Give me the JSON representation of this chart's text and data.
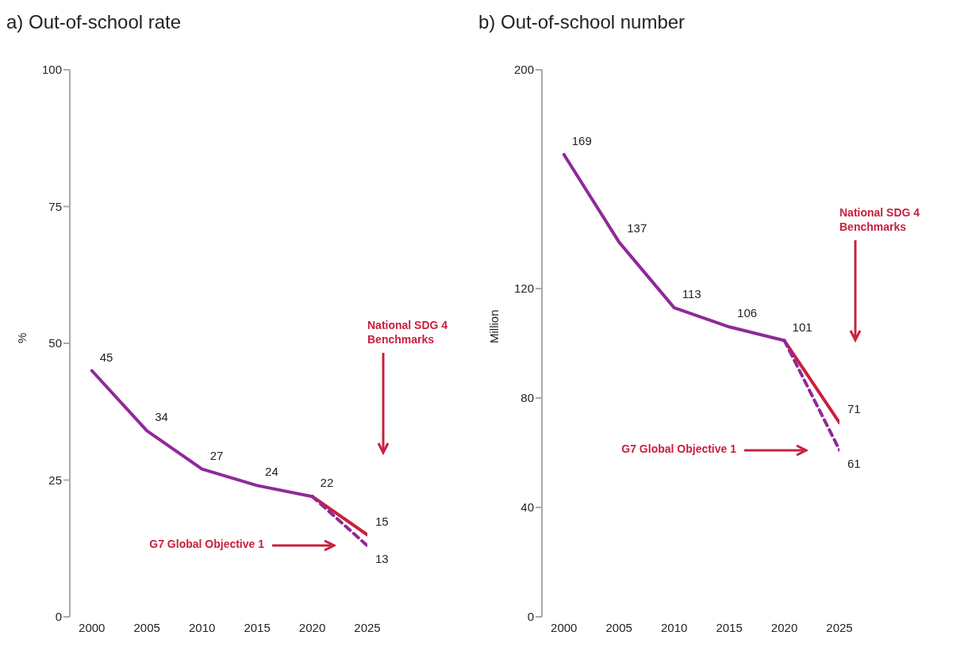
{
  "chart_data": [
    {
      "type": "line",
      "title": "a) Out-of-school rate",
      "ylabel": "%",
      "xlim": [
        1998,
        2025
      ],
      "xticks": [
        2000,
        2005,
        2010,
        2015,
        2020,
        2025
      ],
      "ylim": [
        0,
        100
      ],
      "yticks": [
        0,
        25,
        50,
        75,
        100
      ],
      "marker": "none",
      "series": [
        {
          "color": "#8e2a99",
          "x": [
            2000,
            2005,
            2010,
            2015,
            2020
          ],
          "values": [
            45,
            34,
            27,
            24,
            22
          ],
          "value_labels": [
            "45",
            "34",
            "27",
            "24",
            "22"
          ],
          "line_style": "solid"
        },
        {
          "color": "#c8203f",
          "x": [
            2020,
            2025
          ],
          "values": [
            22,
            15
          ],
          "value_labels": [
            null,
            "15"
          ],
          "line_style": "solid"
        },
        {
          "color": "#8e2a99",
          "x": [
            2020,
            2025
          ],
          "values": [
            22,
            13
          ],
          "value_labels": [
            null,
            "13"
          ],
          "line_style": "dashed"
        }
      ],
      "annotations": [
        "National SDG 4 Benchmarks",
        "G7 Global Objective 1"
      ]
    },
    {
      "type": "line",
      "title": "b) Out-of-school number",
      "ylabel": "Million",
      "xlim": [
        1998,
        2025
      ],
      "xticks": [
        2000,
        2005,
        2010,
        2015,
        2020,
        2025
      ],
      "ylim": [
        0,
        200
      ],
      "yticks": [
        0,
        40,
        80,
        120,
        200
      ],
      "marker": "none",
      "series": [
        {
          "color": "#8e2a99",
          "x": [
            2000,
            2005,
            2010,
            2015,
            2020
          ],
          "values": [
            169,
            137,
            113,
            106,
            101
          ],
          "value_labels": [
            "169",
            "137",
            "113",
            "106",
            "101"
          ],
          "line_style": "solid"
        },
        {
          "color": "#c8203f",
          "x": [
            2020,
            2025
          ],
          "values": [
            101,
            71
          ],
          "value_labels": [
            null,
            "71"
          ],
          "line_style": "solid"
        },
        {
          "color": "#8e2a99",
          "x": [
            2020,
            2025
          ],
          "values": [
            101,
            61
          ],
          "value_labels": [
            null,
            "61"
          ],
          "line_style": "dashed"
        }
      ],
      "annotations": [
        "National SDG 4 Benchmarks",
        "G7 Global Objective 1"
      ]
    }
  ]
}
